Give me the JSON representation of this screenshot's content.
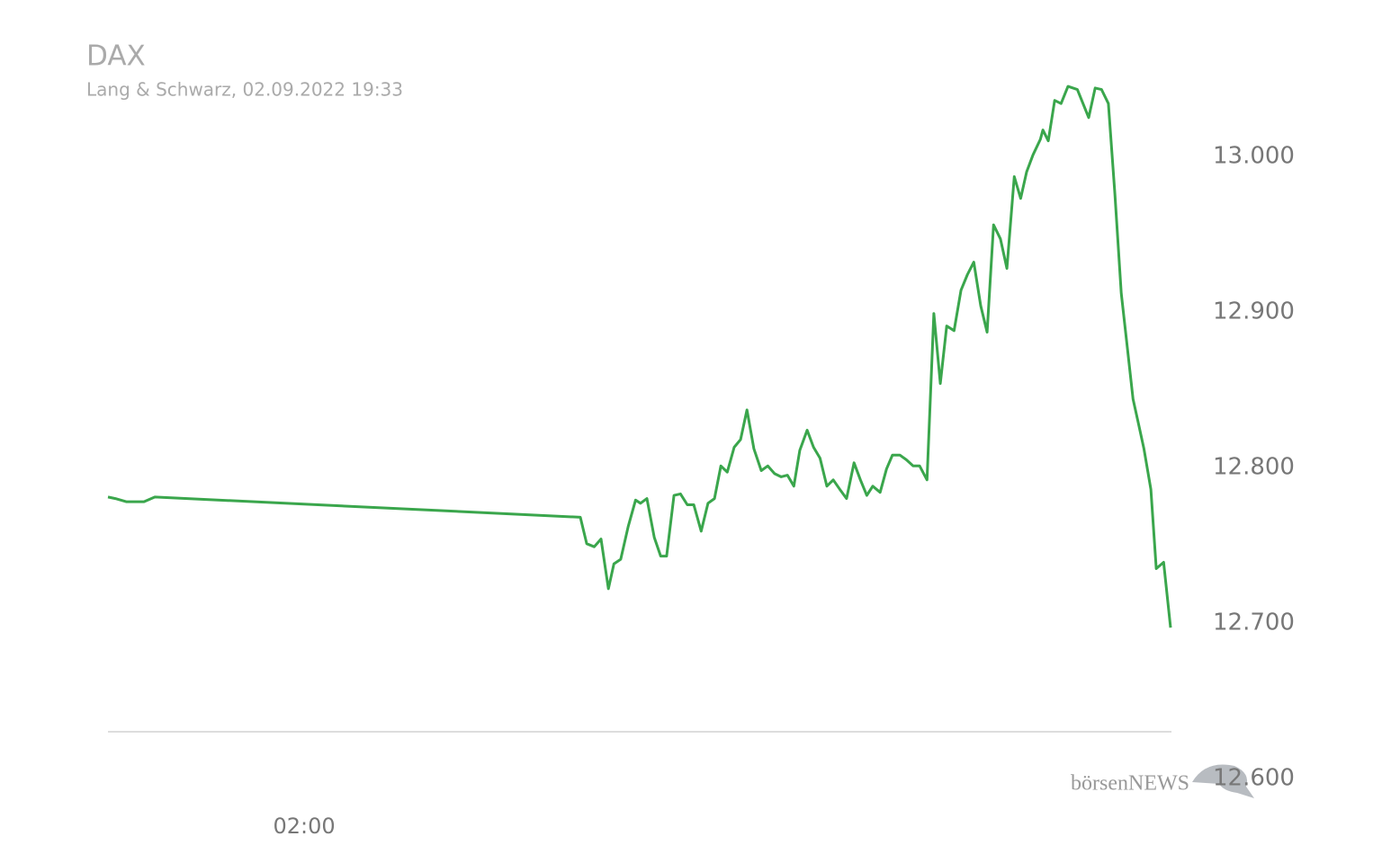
{
  "chart_data": {
    "type": "line",
    "title": "DAX",
    "subtitle": "Lang & Schwarz, 02.09.2022 19:33",
    "logo_text": "börsenNEWS",
    "grid": false,
    "y_axis_side": "right",
    "xlim": [
      -1.98,
      19.57
    ],
    "xticks": [
      {
        "value": 2,
        "label": "02:00"
      }
    ],
    "ylim": [
      12600,
      13050
    ],
    "yticks": [
      {
        "value": 12600,
        "label": "12.600"
      },
      {
        "value": 12700,
        "label": "12.700"
      },
      {
        "value": 12800,
        "label": "12.800"
      },
      {
        "value": 12900,
        "label": "12.900"
      },
      {
        "value": 13000,
        "label": "13.000"
      }
    ],
    "series": [
      {
        "name": "DAX",
        "color": "#3aa64c",
        "x": [
          -1.98,
          -1.83,
          -1.61,
          -1.25,
          -1.03,
          7.6,
          7.73,
          7.88,
          8.02,
          8.17,
          8.28,
          8.42,
          8.57,
          8.72,
          8.82,
          8.95,
          9.1,
          9.23,
          9.35,
          9.5,
          9.63,
          9.77,
          9.9,
          10.05,
          10.19,
          10.32,
          10.45,
          10.58,
          10.72,
          10.85,
          10.98,
          11.12,
          11.27,
          11.4,
          11.54,
          11.67,
          11.8,
          11.93,
          12.05,
          12.2,
          12.33,
          12.46,
          12.6,
          12.73,
          12.86,
          13.0,
          13.15,
          13.28,
          13.41,
          13.53,
          13.68,
          13.81,
          13.93,
          14.08,
          14.21,
          14.35,
          14.48,
          14.63,
          14.77,
          14.9,
          15.03,
          15.18,
          15.32,
          15.45,
          15.58,
          15.72,
          15.85,
          15.98,
          16.12,
          16.25,
          16.4,
          16.53,
          16.65,
          16.78,
          16.93,
          16.98,
          17.09,
          17.22,
          17.35,
          17.49,
          17.68,
          17.91,
          18.04,
          18.17,
          18.31,
          18.44,
          18.57,
          18.68,
          18.81,
          18.92,
          19.03,
          19.17,
          19.28,
          19.43,
          19.57
        ],
        "values": [
          12781,
          12780,
          12778,
          12778,
          12781,
          12768,
          12751,
          12749,
          12754,
          12722,
          12738,
          12741,
          12762,
          12779,
          12777,
          12780,
          12755,
          12743,
          12743,
          12782,
          12783,
          12776,
          12776,
          12759,
          12777,
          12780,
          12801,
          12797,
          12813,
          12818,
          12837,
          12812,
          12798,
          12801,
          12796,
          12794,
          12795,
          12788,
          12811,
          12824,
          12813,
          12806,
          12788,
          12792,
          12786,
          12780,
          12803,
          12792,
          12782,
          12788,
          12784,
          12799,
          12808,
          12808,
          12805,
          12801,
          12801,
          12792,
          12899,
          12854,
          12891,
          12888,
          12914,
          12924,
          12932,
          12904,
          12887,
          12956,
          12947,
          12928,
          12987,
          12973,
          12990,
          13001,
          13011,
          13017,
          13010,
          13036,
          13034,
          13045,
          13043,
          13025,
          13044,
          13043,
          13034,
          12976,
          12912,
          12881,
          12844,
          12828,
          12812,
          12786,
          12735,
          12739,
          12697
        ]
      }
    ]
  }
}
